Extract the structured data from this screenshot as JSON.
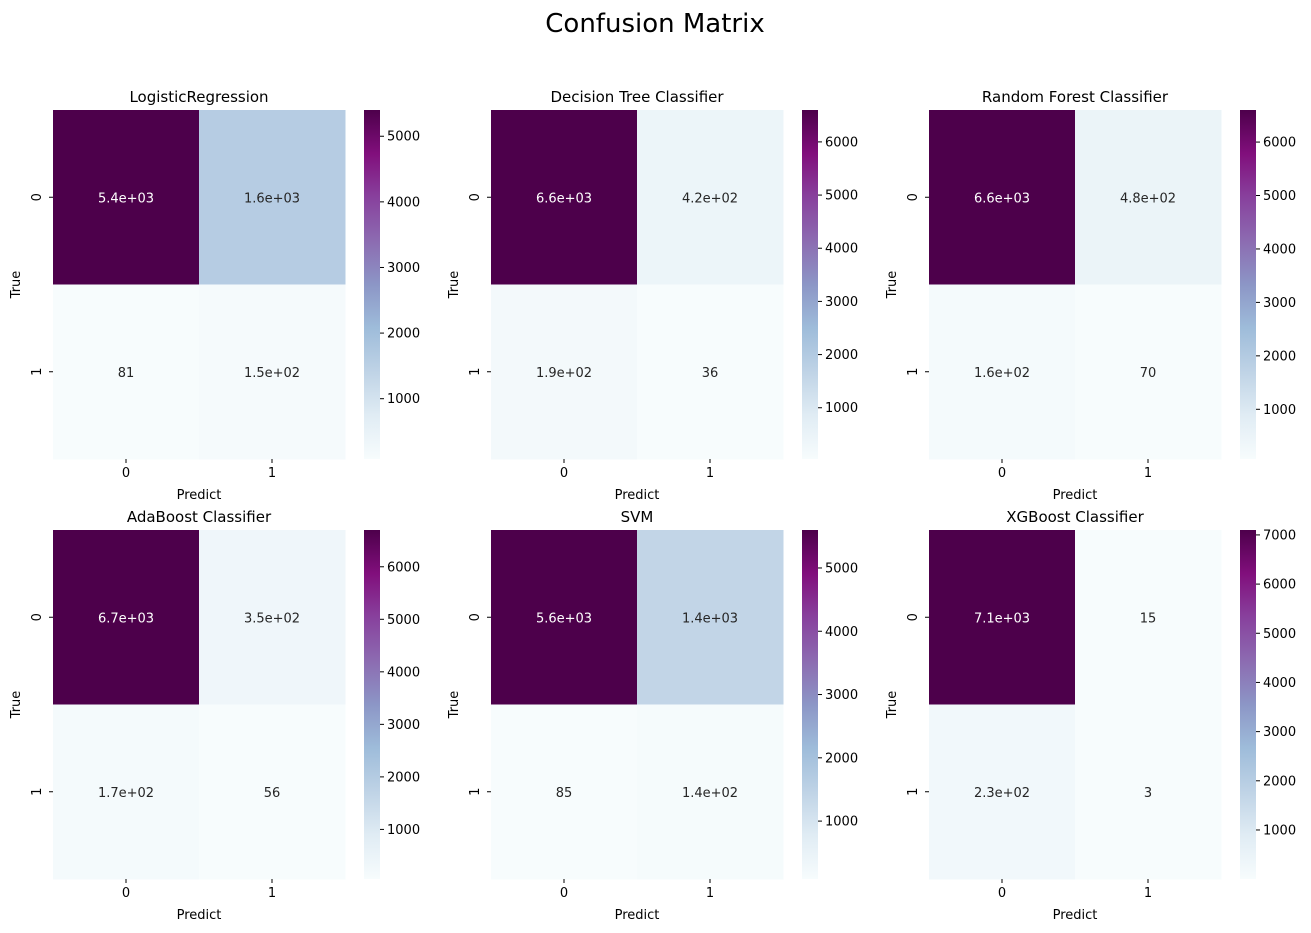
{
  "figure": {
    "title": "Confusion Matrix"
  },
  "colormap": [
    "#f7fcfd",
    "#e0ecf4",
    "#bfd3e6",
    "#9ebcda",
    "#8c96c6",
    "#8c6bb1",
    "#88419d",
    "#810f7c",
    "#4d004b"
  ],
  "chart_data": [
    {
      "type": "heatmap",
      "title": "LogisticRegression",
      "xlabel": "Predict",
      "ylabel": "True",
      "xticks": [
        "0",
        "1"
      ],
      "yticks": [
        "0",
        "1"
      ],
      "values": [
        [
          5400,
          1600
        ],
        [
          81,
          150
        ]
      ],
      "annotations": [
        [
          "5.4e+03",
          "1.6e+03"
        ],
        [
          "81",
          "1.5e+02"
        ]
      ],
      "colorbar": {
        "vmin": 81,
        "vmax": 5400,
        "ticks": [
          1000,
          2000,
          3000,
          4000,
          5000
        ]
      }
    },
    {
      "type": "heatmap",
      "title": "Decision Tree Classifier",
      "xlabel": "Predict",
      "ylabel": "True",
      "xticks": [
        "0",
        "1"
      ],
      "yticks": [
        "0",
        "1"
      ],
      "values": [
        [
          6600,
          420
        ],
        [
          190,
          36
        ]
      ],
      "annotations": [
        [
          "6.6e+03",
          "4.2e+02"
        ],
        [
          "1.9e+02",
          "36"
        ]
      ],
      "colorbar": {
        "vmin": 36,
        "vmax": 6600,
        "ticks": [
          1000,
          2000,
          3000,
          4000,
          5000,
          6000
        ]
      }
    },
    {
      "type": "heatmap",
      "title": "Random Forest Classifier",
      "xlabel": "Predict",
      "ylabel": "True",
      "xticks": [
        "0",
        "1"
      ],
      "yticks": [
        "0",
        "1"
      ],
      "values": [
        [
          6600,
          480
        ],
        [
          160,
          70
        ]
      ],
      "annotations": [
        [
          "6.6e+03",
          "4.8e+02"
        ],
        [
          "1.6e+02",
          "70"
        ]
      ],
      "colorbar": {
        "vmin": 70,
        "vmax": 6600,
        "ticks": [
          1000,
          2000,
          3000,
          4000,
          5000,
          6000
        ]
      }
    },
    {
      "type": "heatmap",
      "title": "AdaBoost Classifier",
      "xlabel": "Predict",
      "ylabel": "True",
      "xticks": [
        "0",
        "1"
      ],
      "yticks": [
        "0",
        "1"
      ],
      "values": [
        [
          6700,
          350
        ],
        [
          170,
          56
        ]
      ],
      "annotations": [
        [
          "6.7e+03",
          "3.5e+02"
        ],
        [
          "1.7e+02",
          "56"
        ]
      ],
      "colorbar": {
        "vmin": 56,
        "vmax": 6700,
        "ticks": [
          1000,
          2000,
          3000,
          4000,
          5000,
          6000
        ]
      }
    },
    {
      "type": "heatmap",
      "title": "SVM",
      "xlabel": "Predict",
      "ylabel": "True",
      "xticks": [
        "0",
        "1"
      ],
      "yticks": [
        "0",
        "1"
      ],
      "values": [
        [
          5600,
          1400
        ],
        [
          85,
          140
        ]
      ],
      "annotations": [
        [
          "5.6e+03",
          "1.4e+03"
        ],
        [
          "85",
          "1.4e+02"
        ]
      ],
      "colorbar": {
        "vmin": 85,
        "vmax": 5600,
        "ticks": [
          1000,
          2000,
          3000,
          4000,
          5000
        ]
      }
    },
    {
      "type": "heatmap",
      "title": "XGBoost Classifier",
      "xlabel": "Predict",
      "ylabel": "True",
      "xticks": [
        "0",
        "1"
      ],
      "yticks": [
        "0",
        "1"
      ],
      "values": [
        [
          7100,
          15
        ],
        [
          230,
          3
        ]
      ],
      "annotations": [
        [
          "7.1e+03",
          "15"
        ],
        [
          "2.3e+02",
          "3"
        ]
      ],
      "colorbar": {
        "vmin": 3,
        "vmax": 7100,
        "ticks": [
          1000,
          2000,
          3000,
          4000,
          5000,
          6000,
          7000
        ]
      }
    }
  ]
}
